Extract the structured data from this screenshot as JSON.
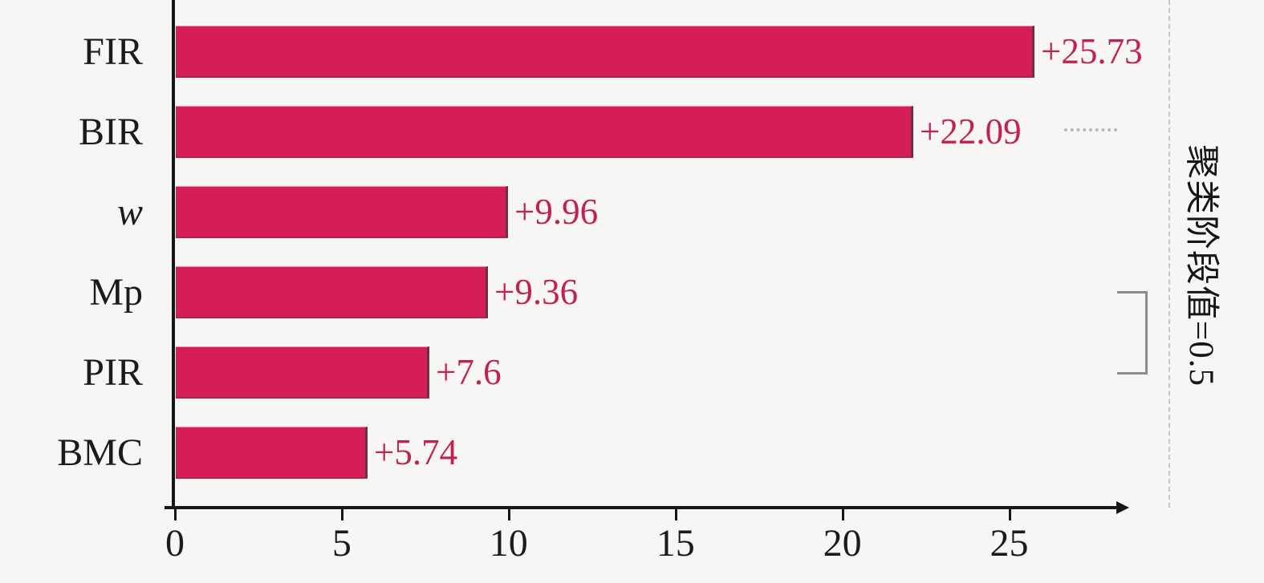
{
  "chart_data": {
    "type": "bar",
    "orientation": "horizontal",
    "title": "",
    "xlabel": "",
    "ylabel": "",
    "categories": [
      "FIR",
      "BIR",
      "w",
      "Mp",
      "PIR",
      "BMC"
    ],
    "italic_categories": [
      "w"
    ],
    "values": [
      25.73,
      22.09,
      9.96,
      9.36,
      7.6,
      5.74
    ],
    "value_labels": [
      "+25.73",
      "+22.09",
      "+9.96",
      "+9.36",
      "+7.6",
      "+5.74"
    ],
    "x_ticks": [
      0,
      5,
      10,
      15,
      20,
      25
    ],
    "xlim": [
      0,
      28.4
    ],
    "grid": false,
    "legend": false,
    "bar_color": "#d61e56",
    "value_label_color": "#c32153",
    "axis_color": "#161616",
    "right_annotation": "聚类阶段值=0.5",
    "bracket_between_categories": [
      "Mp",
      "PIR"
    ]
  },
  "decorations": {
    "dashed_vertical_line": true,
    "dotted_leader_after": "BIR"
  }
}
